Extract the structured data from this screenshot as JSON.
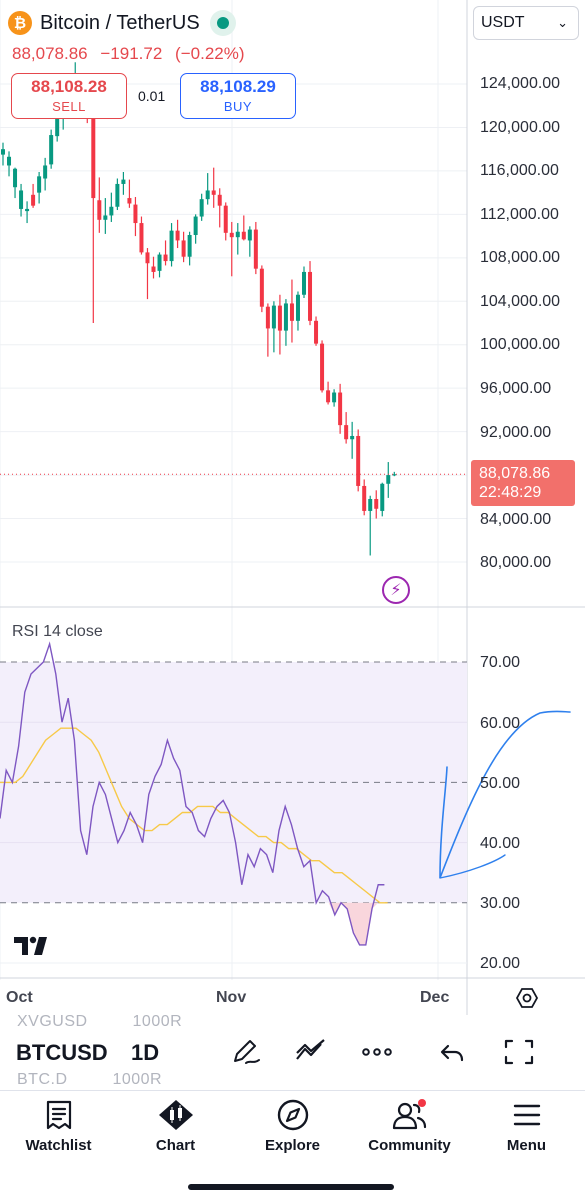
{
  "header": {
    "pair_title": "Bitcoin / TetherUS",
    "coin_icon": "bitcoin-icon",
    "last_price": "88,078.86",
    "change": "−191.72",
    "change_pct": "(−0.22%)"
  },
  "trade": {
    "sell_price": "88,108.28",
    "sell_label": "SELL",
    "spread": "0.01",
    "buy_price": "88,108.29",
    "buy_label": "BUY"
  },
  "currency_select": {
    "value": "USDT"
  },
  "price_axis": {
    "labels": [
      "124,000.00",
      "120,000.00",
      "116,000.00",
      "112,000.00",
      "108,000.00",
      "104,000.00",
      "100,000.00",
      "96,000.00",
      "92,000.00",
      "84,000.00",
      "80,000.00"
    ],
    "current_price": "88,078.86",
    "countdown": "22:48:29"
  },
  "rsi": {
    "label": "RSI 14 close",
    "axis_labels": [
      "70.00",
      "60.00",
      "50.00",
      "40.00",
      "30.00",
      "20.00"
    ]
  },
  "time_axis": {
    "labels": [
      "Oct",
      "Nov",
      "Dec"
    ]
  },
  "toolbar": {
    "symbol": "BTCUSD",
    "interval": "1D",
    "ghost_row_top": [
      "XVGUSD",
      "1000R"
    ],
    "ghost_row_bottom": [
      "BTC.D",
      "1000R"
    ],
    "icons": [
      "pen-icon",
      "trend-line-icon",
      "more-icon",
      "undo-icon",
      "fullscreen-icon"
    ]
  },
  "nav": {
    "items": [
      {
        "label": "Watchlist",
        "icon": "watchlist-icon"
      },
      {
        "label": "Chart",
        "icon": "chart-icon"
      },
      {
        "label": "Explore",
        "icon": "compass-icon"
      },
      {
        "label": "Community",
        "icon": "community-icon"
      },
      {
        "label": "Menu",
        "icon": "menu-icon"
      }
    ]
  },
  "colors": {
    "up": "#089981",
    "down": "#f23645",
    "rsi_line": "#7e57c2",
    "rsi_ma": "#f7c948",
    "rsi_band": "#f3effb",
    "annotation": "#2f80ed"
  },
  "chart_data": {
    "type": "candlestick",
    "ohlc": [
      [
        117500,
        118600,
        116500,
        118000
      ],
      [
        116500,
        117800,
        115500,
        117300
      ],
      [
        114500,
        116300,
        113500,
        116200
      ],
      [
        112500,
        114800,
        111800,
        114200
      ],
      [
        112300,
        113200,
        111200,
        112500
      ],
      [
        113800,
        114800,
        112600,
        112800
      ],
      [
        114000,
        115900,
        113000,
        115500
      ],
      [
        115300,
        117200,
        114200,
        116500
      ],
      [
        116600,
        119800,
        116200,
        119300
      ],
      [
        119200,
        121500,
        118700,
        120800
      ],
      [
        120800,
        122600,
        119800,
        121900
      ],
      [
        121900,
        124300,
        121200,
        123500
      ],
      [
        123500,
        126000,
        122400,
        124200
      ],
      [
        124000,
        124800,
        121600,
        122300
      ],
      [
        122300,
        122700,
        120400,
        121100
      ],
      [
        121100,
        121400,
        102000,
        113500
      ],
      [
        113300,
        115400,
        110300,
        111500
      ],
      [
        111500,
        113500,
        110200,
        111900
      ],
      [
        111900,
        114000,
        111300,
        112700
      ],
      [
        112700,
        115300,
        112400,
        114800
      ],
      [
        114800,
        115900,
        113800,
        115200
      ],
      [
        113500,
        115200,
        112600,
        113000
      ],
      [
        112900,
        113600,
        110000,
        111200
      ],
      [
        111200,
        111800,
        108300,
        108500
      ],
      [
        108500,
        108900,
        104200,
        107500
      ],
      [
        107200,
        108100,
        106100,
        106700
      ],
      [
        106800,
        108500,
        106200,
        108300
      ],
      [
        108300,
        109600,
        107300,
        107700
      ],
      [
        107700,
        111200,
        107200,
        110500
      ],
      [
        110500,
        111500,
        108900,
        109600
      ],
      [
        109600,
        110400,
        107600,
        108100
      ],
      [
        108100,
        110400,
        107300,
        110100
      ],
      [
        110100,
        112000,
        109300,
        111800
      ],
      [
        111800,
        113900,
        111400,
        113400
      ],
      [
        113400,
        115800,
        112900,
        114200
      ],
      [
        114200,
        116300,
        112600,
        113800
      ],
      [
        113800,
        114400,
        110800,
        112800
      ],
      [
        112800,
        113100,
        109600,
        110300
      ],
      [
        110300,
        111300,
        106300,
        109900
      ],
      [
        109900,
        111200,
        108300,
        110400
      ],
      [
        110400,
        111900,
        109600,
        109700
      ],
      [
        109600,
        110900,
        108100,
        110600
      ],
      [
        110600,
        111300,
        106500,
        107000
      ],
      [
        107000,
        107300,
        103000,
        103500
      ],
      [
        103500,
        103800,
        98900,
        101500
      ],
      [
        101500,
        104000,
        99300,
        103600
      ],
      [
        103600,
        104600,
        99100,
        101300
      ],
      [
        101300,
        104200,
        99900,
        103800
      ],
      [
        103800,
        106000,
        100200,
        102200
      ],
      [
        102200,
        104900,
        101300,
        104600
      ],
      [
        104600,
        107200,
        104300,
        106700
      ],
      [
        106700,
        107700,
        101800,
        102200
      ],
      [
        102200,
        102600,
        99900,
        100100
      ],
      [
        100100,
        100400,
        95600,
        95800
      ],
      [
        95800,
        96600,
        94500,
        94700
      ],
      [
        94700,
        95900,
        94300,
        95600
      ],
      [
        95600,
        96400,
        91800,
        92600
      ],
      [
        92600,
        93800,
        90900,
        91300
      ],
      [
        91300,
        92900,
        89500,
        91600
      ],
      [
        91600,
        92200,
        86500,
        87000
      ],
      [
        87000,
        87600,
        84300,
        84700
      ],
      [
        84700,
        86100,
        80600,
        85800
      ],
      [
        85800,
        86600,
        84000,
        84900
      ],
      [
        84700,
        87300,
        84200,
        87200
      ],
      [
        87200,
        89200,
        85900,
        88000
      ],
      [
        88000,
        88300,
        87900,
        88078.86
      ]
    ],
    "ylim": [
      78000,
      128000
    ],
    "rsi": {
      "ylim": [
        15,
        75
      ],
      "levels": [
        70,
        50,
        30
      ],
      "line": [
        44,
        52,
        50,
        56,
        65,
        68,
        69,
        70,
        73,
        68,
        60,
        64,
        57,
        42,
        38,
        46,
        50,
        48,
        44,
        40,
        42,
        45,
        43,
        40,
        48,
        51,
        53,
        57,
        54,
        52,
        46,
        45,
        42,
        41,
        44,
        46,
        47,
        45,
        40,
        33,
        38,
        36,
        39,
        38,
        35,
        42,
        46,
        43,
        39,
        36,
        37,
        30,
        32,
        31,
        28,
        30,
        29,
        25,
        23,
        23,
        29,
        33,
        33
      ],
      "ma": [
        50,
        50,
        50,
        51,
        53,
        55,
        57,
        58,
        59,
        59,
        59,
        58,
        57,
        55,
        52,
        49,
        46,
        44,
        43,
        42,
        42,
        43,
        43,
        44,
        45,
        45,
        46,
        46,
        46,
        45,
        45,
        44,
        43,
        42,
        41,
        41,
        40,
        40,
        39,
        39,
        38,
        37,
        37,
        36,
        35,
        35,
        34,
        33,
        32,
        31,
        30,
        30
      ]
    }
  }
}
